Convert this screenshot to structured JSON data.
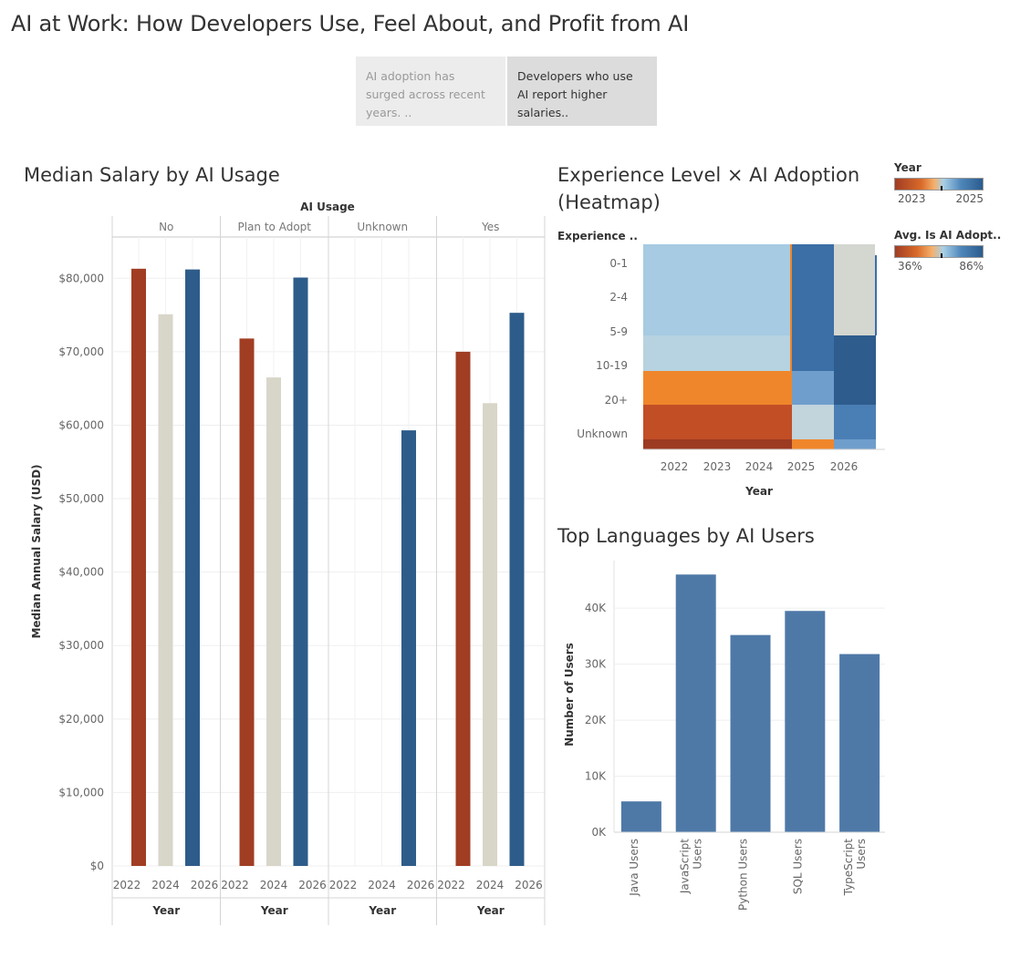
{
  "dashboard": {
    "title": "AI at Work: How Developers Use, Feel About, and Profit from AI",
    "story_points": [
      {
        "label": "AI adoption has surged across recent years. ..",
        "active": false
      },
      {
        "label": "Developers who use AI report higher salaries..",
        "active": true
      }
    ]
  },
  "salary_chart": {
    "title": "Median Salary by AI Usage",
    "column_header": "AI Usage",
    "ylabel": "Median Annual Salary (USD)",
    "xlabel": "Year",
    "y_ticks": [
      "$0",
      "$10,000",
      "$20,000",
      "$30,000",
      "$40,000",
      "$50,000",
      "$60,000",
      "$70,000",
      "$80,000"
    ],
    "x_ticks": [
      "2022",
      "2024",
      "2026"
    ]
  },
  "heatmap": {
    "title_line1": "Experience Level × AI Adoption",
    "title_line2": "(Heatmap)",
    "row_header": "Experience ..",
    "xlabel": "Year",
    "legend_year_title": "Year",
    "legend_year_min": "2023",
    "legend_year_max": "2025",
    "legend_adopt_title": "Avg. Is AI Adopt..",
    "legend_adopt_min": "36%",
    "legend_adopt_max": "86%"
  },
  "languages_chart": {
    "title": "Top Languages by AI Users",
    "ylabel": "Number of Users"
  },
  "colors": {
    "y2022": "#a13d23",
    "y2024": "#d8d6c9",
    "y2026": "#2e5c8a",
    "lang_bar": "#4e79a7"
  },
  "chart_data": [
    {
      "type": "bar",
      "title": "Median Salary by AI Usage",
      "xlabel": "Year",
      "ylabel": "Median Annual Salary (USD)",
      "ylim": [
        0,
        85000
      ],
      "facets": [
        "No",
        "Plan to Adopt",
        "Unknown",
        "Yes"
      ],
      "categories": [
        "2022",
        "2024",
        "2026"
      ],
      "series": [
        {
          "facet": "No",
          "values": [
            81300,
            75100,
            81200
          ]
        },
        {
          "facet": "Plan to Adopt",
          "values": [
            71800,
            66500,
            80100
          ]
        },
        {
          "facet": "Unknown",
          "values": [
            null,
            null,
            59300
          ]
        },
        {
          "facet": "Yes",
          "values": [
            70000,
            63000,
            75300
          ]
        }
      ]
    },
    {
      "type": "heatmap",
      "title": "Experience Level × AI Adoption (Heatmap)",
      "xlabel": "Year",
      "x": [
        "2022",
        "2023",
        "2024",
        "2025",
        "2026"
      ],
      "y": [
        "0-1",
        "2-4",
        "5-9",
        "10-19",
        "20+",
        "Unknown"
      ]
    },
    {
      "type": "bar",
      "title": "Top Languages by AI Users",
      "ylabel": "Number of Users",
      "y_ticks": [
        "0K",
        "10K",
        "20K",
        "30K",
        "40K"
      ],
      "ylim": [
        0,
        48000
      ],
      "categories": [
        "Java Users",
        "JavaScript Users",
        "Python Users",
        "SQL Users",
        "TypeScript Users"
      ],
      "category_lines": [
        [
          "Java Users"
        ],
        [
          "JavaScript",
          "Users"
        ],
        [
          "Python Users"
        ],
        [
          "SQL Users"
        ],
        [
          "TypeScript",
          "Users"
        ]
      ],
      "values": [
        5500,
        46000,
        35200,
        39500,
        31800
      ]
    }
  ]
}
